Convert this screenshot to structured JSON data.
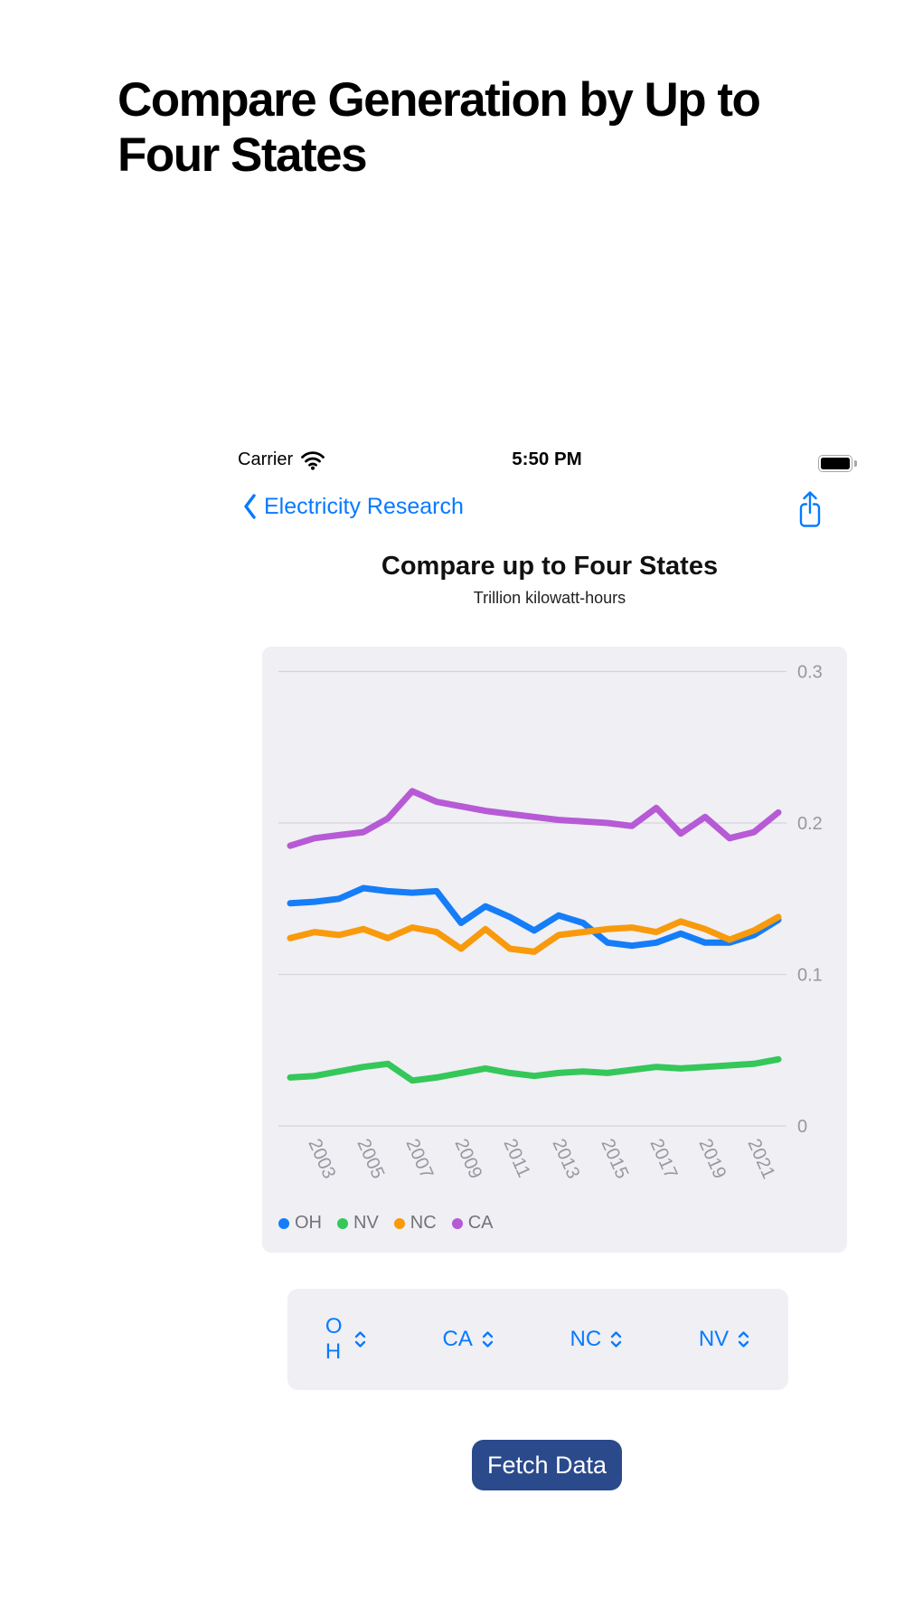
{
  "page": {
    "title": "Compare Generation by Up to Four States"
  },
  "status_bar": {
    "carrier": "Carrier",
    "time": "5:50 PM",
    "battery_icon": "battery-full-icon",
    "wifi_icon": "wifi-icon"
  },
  "nav_bar": {
    "back_label": "Electricity Research",
    "back_icon": "chevron-left-icon",
    "share_icon": "share-icon"
  },
  "chart_header": {
    "title": "Compare up to Four States",
    "subtitle": "Trillion kilowatt-hours"
  },
  "chart_data": {
    "type": "line",
    "title": "Compare up to Four States",
    "units": "Trillion kilowatt-hours",
    "grid": true,
    "legend_position": "bottom-left",
    "ylim": [
      0,
      0.32
    ],
    "x": [
      2002,
      2003,
      2004,
      2005,
      2006,
      2007,
      2008,
      2009,
      2010,
      2011,
      2012,
      2013,
      2014,
      2015,
      2016,
      2017,
      2018,
      2019,
      2020,
      2021,
      2022
    ],
    "xticks": [
      2003,
      2005,
      2007,
      2009,
      2011,
      2013,
      2015,
      2017,
      2019,
      2021
    ],
    "yticks": [
      {
        "label": "0.3",
        "value": 0.3
      },
      {
        "label": "0.2",
        "value": 0.2
      },
      {
        "label": "0.1",
        "value": 0.1
      },
      {
        "label": "0",
        "value": 0
      }
    ],
    "series": [
      {
        "name": "OH",
        "color": "#157DF7",
        "values": [
          0.147,
          0.148,
          0.15,
          0.157,
          0.155,
          0.154,
          0.155,
          0.134,
          0.145,
          0.138,
          0.129,
          0.139,
          0.134,
          0.121,
          0.119,
          0.121,
          0.127,
          0.121,
          0.121,
          0.126,
          0.136
        ]
      },
      {
        "name": "NV",
        "color": "#35C759",
        "values": [
          0.032,
          0.033,
          0.036,
          0.039,
          0.041,
          0.03,
          0.032,
          0.035,
          0.038,
          0.035,
          0.033,
          0.035,
          0.036,
          0.035,
          0.037,
          0.039,
          0.038,
          0.039,
          0.04,
          0.041,
          0.044
        ]
      },
      {
        "name": "NC",
        "color": "#F89A0B",
        "values": [
          0.124,
          0.128,
          0.126,
          0.13,
          0.124,
          0.131,
          0.128,
          0.117,
          0.13,
          0.117,
          0.115,
          0.126,
          0.128,
          0.13,
          0.131,
          0.128,
          0.135,
          0.13,
          0.123,
          0.129,
          0.138
        ]
      },
      {
        "name": "CA",
        "color": "#B75AD5",
        "values": [
          0.185,
          0.19,
          0.192,
          0.194,
          0.203,
          0.221,
          0.214,
          0.211,
          0.208,
          0.206,
          0.204,
          0.202,
          0.201,
          0.2,
          0.198,
          0.21,
          0.193,
          0.204,
          0.19,
          0.194,
          0.207
        ]
      }
    ]
  },
  "pickers": [
    {
      "value": "OH"
    },
    {
      "value": "CA"
    },
    {
      "value": "NC"
    },
    {
      "value": "NV"
    }
  ],
  "fetch_button": {
    "label": "Fetch Data"
  },
  "colors": {
    "accent_blue": "#077AFF",
    "panel_bg": "#EFEFF4",
    "button_navy": "#2A4A8C",
    "gridline": "#D4D4D9",
    "tick_label": "#98989E",
    "legend_label": "#73737A"
  }
}
